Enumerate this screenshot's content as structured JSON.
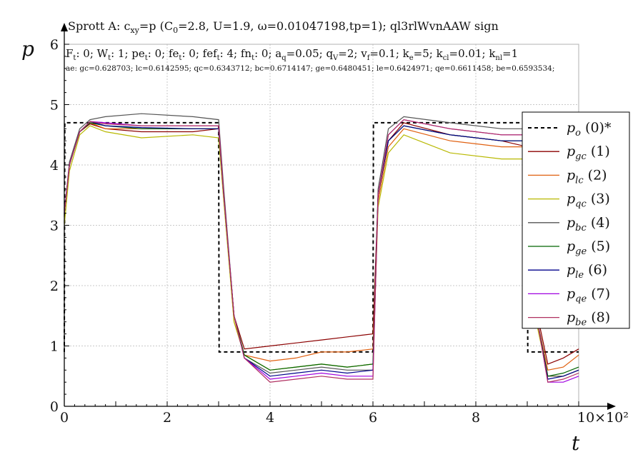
{
  "chart_data": {
    "type": "line",
    "title": "Sprott A: c",
    "title_parts": {
      "a": "Sprott A: c",
      "a_sub": "xy",
      "b": "=p (C",
      "b_sub": "0",
      "c": "=2.8, U=1.9, ω=0.01047198,tp=1); ql3rlWvnAAW sign"
    },
    "params_line": [
      {
        "t": "F",
        "s": "t",
        "v": ": 0; "
      },
      {
        "t": "W",
        "s": "t",
        "v": ": 1; "
      },
      {
        "t": "pe",
        "s": "t",
        "v": ": 0; "
      },
      {
        "t": "fe",
        "s": "t",
        "v": ": 0; "
      },
      {
        "t": "fef",
        "s": "t",
        "v": ": 4; "
      },
      {
        "t": "fn",
        "s": "t",
        "v": ": 0; "
      },
      {
        "t": "a",
        "s": "q",
        "v": "=0.05; "
      },
      {
        "t": "q",
        "s": "V",
        "v": "=2; "
      },
      {
        "t": "v",
        "s": "f",
        "v": "=0.1; "
      },
      {
        "t": "k",
        "s": "e",
        "v": "=5; "
      },
      {
        "t": "k",
        "s": "cl",
        "v": "=0.01; "
      },
      {
        "t": "k",
        "s": "nl",
        "v": "=1"
      }
    ],
    "errors_line": "ae: gc=0.628703; lc=0.6142595; qc=0.6343712; bc=0.6714147; ge=0.6480451; le=0.6424971; qe=0.6611458; be=0.6593534;",
    "xlabel": "t",
    "ylabel": "p",
    "x_multiplier": "10×10²",
    "xlim": [
      0,
      10
    ],
    "ylim": [
      0,
      6
    ],
    "x_ticks": [
      "0",
      "2",
      "4",
      "6",
      "8"
    ],
    "y_ticks": [
      "0",
      "1",
      "2",
      "3",
      "4",
      "5",
      "6"
    ],
    "grid": true,
    "legend_position": "right",
    "reference": {
      "name": "p",
      "sub": "o",
      "suffix": " (0)*",
      "color": "#000000",
      "x": [
        0,
        0.01,
        3,
        3.01,
        6,
        6.01,
        9,
        9.01,
        10
      ],
      "y": [
        0.9,
        4.7,
        4.7,
        0.9,
        0.9,
        4.7,
        4.7,
        0.9,
        0.9
      ]
    },
    "series": [
      {
        "name": "p",
        "sub": "gc",
        "suffix": " (1)",
        "color": "#8b0000",
        "x": [
          0,
          0.1,
          0.3,
          0.5,
          0.8,
          1.5,
          2.5,
          3.0,
          3.1,
          3.3,
          3.5,
          4.0,
          4.5,
          5.0,
          5.5,
          6.0,
          6.1,
          6.3,
          6.6,
          7.5,
          8.5,
          9.0,
          9.1,
          9.2,
          9.4,
          9.7,
          10
        ],
        "y": [
          3.2,
          4.0,
          4.55,
          4.68,
          4.6,
          4.55,
          4.55,
          4.6,
          3.5,
          1.5,
          0.95,
          1.0,
          1.05,
          1.1,
          1.15,
          1.2,
          3.5,
          4.4,
          4.7,
          4.5,
          4.4,
          4.3,
          3.0,
          1.5,
          0.7,
          0.8,
          0.95
        ]
      },
      {
        "name": "p",
        "sub": "lc",
        "suffix": " (2)",
        "color": "#e06010",
        "x": [
          0,
          0.1,
          0.3,
          0.5,
          0.8,
          1.5,
          2.5,
          3.0,
          3.1,
          3.3,
          3.5,
          4.0,
          4.5,
          5.0,
          5.5,
          6.0,
          6.1,
          6.3,
          6.6,
          7.5,
          8.5,
          9.0,
          9.1,
          9.2,
          9.4,
          9.7,
          10
        ],
        "y": [
          3.2,
          4.0,
          4.55,
          4.7,
          4.6,
          4.6,
          4.6,
          4.6,
          3.5,
          1.4,
          0.85,
          0.75,
          0.8,
          0.9,
          0.9,
          0.95,
          3.4,
          4.3,
          4.6,
          4.4,
          4.3,
          4.3,
          3.0,
          1.4,
          0.6,
          0.65,
          0.85
        ]
      },
      {
        "name": "p",
        "sub": "qc",
        "suffix": " (3)",
        "color": "#b8b800",
        "x": [
          0,
          0.1,
          0.3,
          0.5,
          0.8,
          1.5,
          2.5,
          3.0,
          3.1,
          3.3,
          3.5,
          4.0,
          4.5,
          5.0,
          5.5,
          6.0,
          6.1,
          6.3,
          6.6,
          7.5,
          8.5,
          9.0,
          9.1,
          9.2,
          9.4,
          9.7,
          10
        ],
        "y": [
          3.0,
          3.9,
          4.5,
          4.65,
          4.55,
          4.45,
          4.5,
          4.45,
          3.4,
          1.4,
          0.85,
          0.6,
          0.65,
          0.7,
          0.65,
          0.7,
          3.3,
          4.2,
          4.5,
          4.2,
          4.1,
          4.1,
          2.9,
          1.3,
          0.5,
          0.5,
          0.6
        ]
      },
      {
        "name": "p",
        "sub": "bc",
        "suffix": " (4)",
        "color": "#555555",
        "x": [
          0,
          0.1,
          0.3,
          0.5,
          0.8,
          1.5,
          2.5,
          3.0,
          3.1,
          3.3,
          3.5,
          4.0,
          4.5,
          5.0,
          5.5,
          6.0,
          6.1,
          6.3,
          6.6,
          7.5,
          8.5,
          9.0,
          9.1,
          9.2,
          9.4,
          9.7,
          10
        ],
        "y": [
          3.2,
          4.05,
          4.6,
          4.75,
          4.8,
          4.85,
          4.8,
          4.75,
          3.6,
          1.5,
          0.8,
          0.55,
          0.6,
          0.65,
          0.6,
          0.6,
          3.6,
          4.6,
          4.8,
          4.7,
          4.6,
          4.6,
          3.1,
          1.4,
          0.5,
          0.5,
          0.6
        ]
      },
      {
        "name": "p",
        "sub": "ge",
        "suffix": " (5)",
        "color": "#006400",
        "x": [
          0,
          0.1,
          0.3,
          0.5,
          0.8,
          1.5,
          2.5,
          3.0,
          3.1,
          3.3,
          3.5,
          4.0,
          4.5,
          5.0,
          5.5,
          6.0,
          6.1,
          6.3,
          6.6,
          7.5,
          8.5,
          9.0,
          9.1,
          9.2,
          9.4,
          9.7,
          10
        ],
        "y": [
          3.2,
          4.0,
          4.55,
          4.7,
          4.65,
          4.6,
          4.6,
          4.6,
          3.5,
          1.5,
          0.85,
          0.6,
          0.65,
          0.7,
          0.65,
          0.7,
          3.5,
          4.4,
          4.65,
          4.5,
          4.4,
          4.4,
          3.0,
          1.4,
          0.5,
          0.55,
          0.65
        ]
      },
      {
        "name": "p",
        "sub": "le",
        "suffix": " (6)",
        "color": "#00008b",
        "x": [
          0,
          0.1,
          0.3,
          0.5,
          0.8,
          1.5,
          2.5,
          3.0,
          3.1,
          3.3,
          3.5,
          4.0,
          4.5,
          5.0,
          5.5,
          6.0,
          6.1,
          6.3,
          6.6,
          7.5,
          8.5,
          9.0,
          9.1,
          9.2,
          9.4,
          9.7,
          10
        ],
        "y": [
          3.2,
          4.0,
          4.55,
          4.72,
          4.65,
          4.62,
          4.6,
          4.6,
          3.5,
          1.5,
          0.8,
          0.5,
          0.55,
          0.6,
          0.55,
          0.6,
          3.5,
          4.4,
          4.65,
          4.5,
          4.4,
          4.4,
          3.0,
          1.4,
          0.45,
          0.5,
          0.6
        ]
      },
      {
        "name": "p",
        "sub": "qe",
        "suffix": " (7)",
        "color": "#a000e0",
        "x": [
          0,
          0.1,
          0.3,
          0.5,
          0.8,
          1.5,
          2.5,
          3.0,
          3.1,
          3.3,
          3.5,
          4.0,
          4.5,
          5.0,
          5.5,
          6.0,
          6.1,
          6.3,
          6.6,
          7.5,
          8.5,
          9.0,
          9.1,
          9.2,
          9.4,
          9.7,
          10
        ],
        "y": [
          3.2,
          4.0,
          4.55,
          4.72,
          4.7,
          4.65,
          4.65,
          4.65,
          3.5,
          1.5,
          0.8,
          0.45,
          0.5,
          0.55,
          0.5,
          0.5,
          3.5,
          4.5,
          4.75,
          4.6,
          4.5,
          4.5,
          3.0,
          1.4,
          0.4,
          0.4,
          0.5
        ]
      },
      {
        "name": "p",
        "sub": "be",
        "suffix": " (8)",
        "color": "#b03060",
        "x": [
          0,
          0.1,
          0.3,
          0.5,
          0.8,
          1.5,
          2.5,
          3.0,
          3.1,
          3.3,
          3.5,
          4.0,
          4.5,
          5.0,
          5.5,
          6.0,
          6.1,
          6.3,
          6.6,
          7.5,
          8.5,
          9.0,
          9.1,
          9.2,
          9.4,
          9.7,
          10
        ],
        "y": [
          3.2,
          4.0,
          4.55,
          4.72,
          4.68,
          4.65,
          4.65,
          4.65,
          3.5,
          1.5,
          0.8,
          0.4,
          0.45,
          0.5,
          0.45,
          0.45,
          3.5,
          4.5,
          4.75,
          4.6,
          4.5,
          4.5,
          3.0,
          1.4,
          0.4,
          0.45,
          0.55
        ]
      }
    ]
  }
}
